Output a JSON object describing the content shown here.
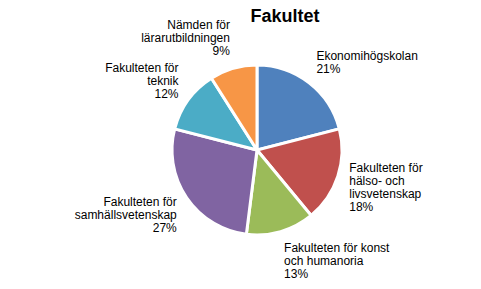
{
  "chart_data": {
    "type": "pie",
    "title": "Fakultet",
    "categories": [
      "Ekonomihögskolan",
      "Fakulteten för hälso- och livsvetenskap",
      "Fakulteten för konst och humanoria",
      "Fakulteten för samhällsvetenskap",
      "Fakulteten för teknik",
      "Nämden för lärarutbildningen"
    ],
    "values": [
      21,
      18,
      13,
      27,
      12,
      9
    ],
    "value_labels": [
      "21%",
      "18%",
      "13%",
      "27%",
      "12%",
      "9%"
    ],
    "colors": [
      "#4F81BD",
      "#C0504D",
      "#9BBB59",
      "#8064A2",
      "#4BACC6",
      "#F79646"
    ],
    "data_labels": true
  }
}
